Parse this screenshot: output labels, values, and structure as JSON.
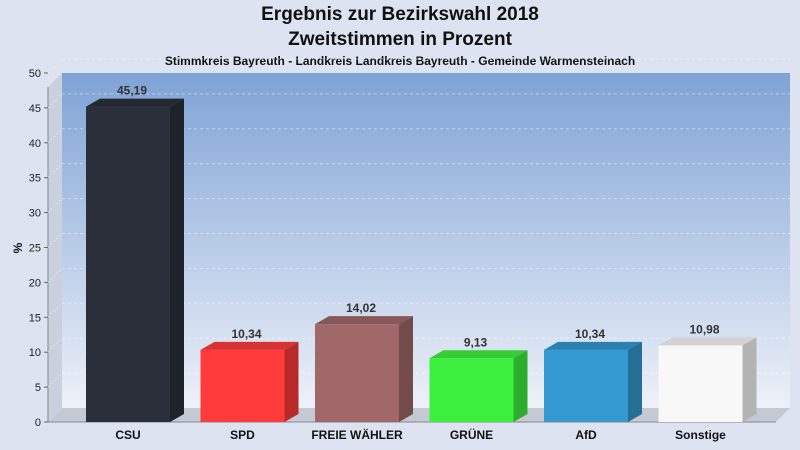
{
  "header": {
    "title": "Ergebnis zur Bezirkswahl 2018",
    "subtitle": "Zweitstimmen in Prozent",
    "region": "Stimmkreis Bayreuth - Landkreis Landkreis Bayreuth - Gemeinde Warmensteinach"
  },
  "chart_data": {
    "type": "bar",
    "title": "Ergebnis zur Bezirkswahl 2018",
    "subtitle": "Zweitstimmen in Prozent",
    "xlabel": "",
    "ylabel": "%",
    "ylim": [
      0,
      50
    ],
    "yticks": [
      0,
      5,
      10,
      15,
      20,
      25,
      30,
      35,
      40,
      45,
      50
    ],
    "grid": true,
    "categories": [
      "CSU",
      "SPD",
      "FREIE WÄHLER",
      "GRÜNE",
      "AfD",
      "Sonstige"
    ],
    "values": [
      45.19,
      10.34,
      14.02,
      9.13,
      10.34,
      10.98
    ],
    "value_labels": [
      "45,19",
      "10,34",
      "14,02",
      "9,13",
      "10,34",
      "10,98"
    ],
    "colors": [
      "#2a2f3a",
      "#ff3b3b",
      "#a06868",
      "#3ef03e",
      "#3399d0",
      "#f8f8f8"
    ]
  }
}
